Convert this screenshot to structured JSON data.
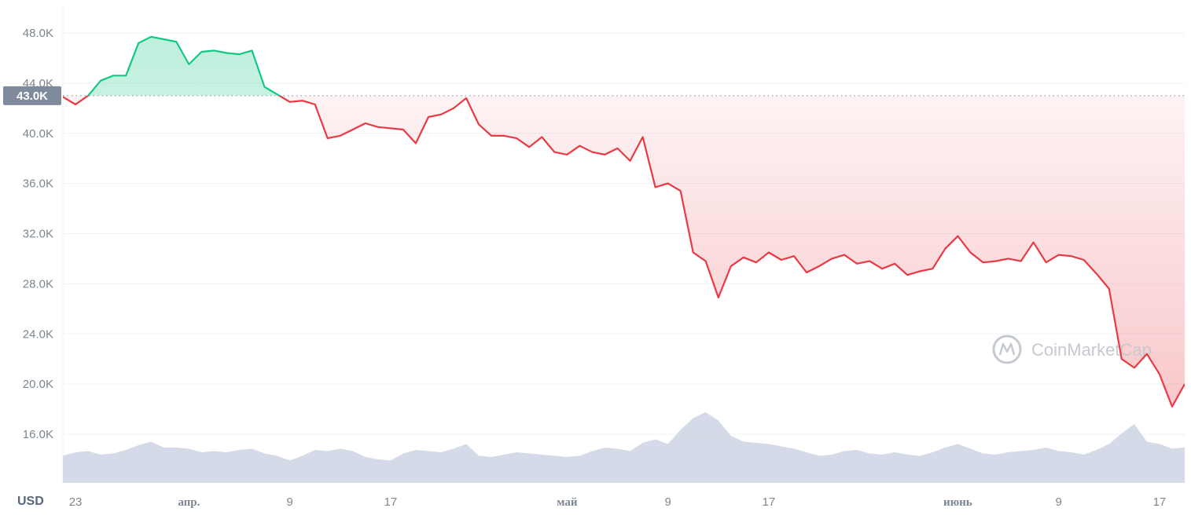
{
  "chart_data": {
    "type": "area",
    "currency_label": "USD",
    "watermark": "CoinMarketCap",
    "reference": {
      "label": "43.0K",
      "value": 43000
    },
    "ylim": [
      13000,
      50000
    ],
    "y_ticks": [
      {
        "value": 48000,
        "label": "48.0K"
      },
      {
        "value": 44000,
        "label": "44.0K"
      },
      {
        "value": 40000,
        "label": "40.0K"
      },
      {
        "value": 36000,
        "label": "36.0K"
      },
      {
        "value": 32000,
        "label": "32.0K"
      },
      {
        "value": 28000,
        "label": "28.0K"
      },
      {
        "value": 24000,
        "label": "24.0K"
      },
      {
        "value": 20000,
        "label": "20.0K"
      },
      {
        "value": 16000,
        "label": "16.0K"
      }
    ],
    "x_range": [
      "2022-03-22",
      "2022-06-19"
    ],
    "x_ticks": [
      {
        "date": "2022-03-23",
        "label": "23",
        "month": false
      },
      {
        "date": "2022-04-01",
        "label": "апр.",
        "month": true
      },
      {
        "date": "2022-04-09",
        "label": "9",
        "month": false
      },
      {
        "date": "2022-04-17",
        "label": "17",
        "month": false
      },
      {
        "date": "2022-05-01",
        "label": "май",
        "month": true
      },
      {
        "date": "2022-05-09",
        "label": "9",
        "month": false
      },
      {
        "date": "2022-05-17",
        "label": "17",
        "month": false
      },
      {
        "date": "2022-06-01",
        "label": "июнь",
        "month": true
      },
      {
        "date": "2022-06-09",
        "label": "9",
        "month": false
      },
      {
        "date": "2022-06-17",
        "label": "17",
        "month": false
      }
    ],
    "colors": {
      "up": "#16c784",
      "down": "#ea3943",
      "volume": "#cfd6e4",
      "grid": "#eff2f5",
      "reference": "#808a9d"
    },
    "series": [
      {
        "x": [
          "2022-03-22",
          "2022-03-23",
          "2022-03-24",
          "2022-03-25",
          "2022-03-26",
          "2022-03-27",
          "2022-03-28",
          "2022-03-29",
          "2022-03-30",
          "2022-03-31",
          "2022-04-01",
          "2022-04-02",
          "2022-04-03",
          "2022-04-04",
          "2022-04-05",
          "2022-04-06",
          "2022-04-07",
          "2022-04-08",
          "2022-04-09",
          "2022-04-10",
          "2022-04-11",
          "2022-04-12",
          "2022-04-13",
          "2022-04-14",
          "2022-04-15",
          "2022-04-16",
          "2022-04-17",
          "2022-04-18",
          "2022-04-19",
          "2022-04-20",
          "2022-04-21",
          "2022-04-22",
          "2022-04-23",
          "2022-04-24",
          "2022-04-25",
          "2022-04-26",
          "2022-04-27",
          "2022-04-28",
          "2022-04-29",
          "2022-04-30",
          "2022-05-01",
          "2022-05-02",
          "2022-05-03",
          "2022-05-04",
          "2022-05-05",
          "2022-05-06",
          "2022-05-07",
          "2022-05-08",
          "2022-05-09",
          "2022-05-10",
          "2022-05-11",
          "2022-05-12",
          "2022-05-13",
          "2022-05-14",
          "2022-05-15",
          "2022-05-16",
          "2022-05-17",
          "2022-05-18",
          "2022-05-19",
          "2022-05-20",
          "2022-05-21",
          "2022-05-22",
          "2022-05-23",
          "2022-05-24",
          "2022-05-25",
          "2022-05-26",
          "2022-05-27",
          "2022-05-28",
          "2022-05-29",
          "2022-05-30",
          "2022-05-31",
          "2022-06-01",
          "2022-06-02",
          "2022-06-03",
          "2022-06-04",
          "2022-06-05",
          "2022-06-06",
          "2022-06-07",
          "2022-06-08",
          "2022-06-09",
          "2022-06-10",
          "2022-06-11",
          "2022-06-12",
          "2022-06-13",
          "2022-06-14",
          "2022-06-15",
          "2022-06-16",
          "2022-06-17",
          "2022-06-18",
          "2022-06-19"
        ],
        "price": [
          42900,
          42300,
          43000,
          44200,
          44600,
          44600,
          47200,
          47700,
          47500,
          47300,
          45500,
          46500,
          46600,
          46400,
          46300,
          46600,
          43700,
          43100,
          42500,
          42600,
          42300,
          39600,
          39800,
          40300,
          40800,
          40500,
          40400,
          40300,
          39200,
          41300,
          41500,
          42000,
          42800,
          40700,
          39800,
          39800,
          39600,
          38900,
          39700,
          38500,
          38300,
          39000,
          38500,
          38300,
          38800,
          37800,
          39700,
          35700,
          36000,
          35400,
          30500,
          29800,
          26900,
          29400,
          30100,
          29700,
          30500,
          29900,
          30200,
          28900,
          29400,
          30000,
          30300,
          29600,
          29800,
          29200,
          29600,
          28700,
          29000,
          29200,
          30800,
          31800,
          30500,
          29700,
          29800,
          30000,
          29800,
          31300,
          29700,
          30300,
          30200,
          29900,
          28800,
          27600,
          22000,
          21300,
          22400,
          20800,
          18200,
          20000
        ],
        "volume": [
          23,
          26,
          27,
          24,
          25,
          28,
          32,
          35,
          30,
          30,
          29,
          26,
          27,
          26,
          28,
          29,
          25,
          23,
          19,
          23,
          28,
          27,
          29,
          27,
          22,
          20,
          19,
          25,
          28,
          27,
          26,
          29,
          33,
          23,
          22,
          24,
          26,
          25,
          24,
          23,
          22,
          23,
          27,
          30,
          29,
          27,
          34,
          37,
          33,
          45,
          55,
          60,
          53,
          40,
          35,
          34,
          33,
          31,
          29,
          26,
          23,
          24,
          27,
          28,
          25,
          24,
          26,
          24,
          23,
          26,
          30,
          33,
          29,
          25,
          24,
          26,
          27,
          28,
          30,
          27,
          26,
          24,
          28,
          33,
          42,
          50,
          35,
          33,
          29,
          30
        ]
      }
    ]
  }
}
